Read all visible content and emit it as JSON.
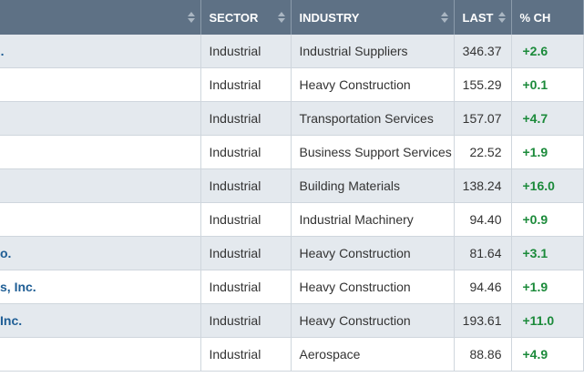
{
  "header": {
    "name": "",
    "sector": "SECTOR",
    "industry": "INDUSTRY",
    "last": "LAST",
    "pct_change": "% CH"
  },
  "colors": {
    "header_bg": "#5e7185",
    "alt_row_bg": "#e4e9ee",
    "name_link": "#1f5e95",
    "positive_change": "#1b8a3a"
  },
  "rows": [
    {
      "name": ".",
      "sector": "Industrial",
      "industry": "Industrial Suppliers",
      "last": "346.37",
      "pct": "+2.6"
    },
    {
      "name": "",
      "sector": "Industrial",
      "industry": "Heavy Construction",
      "last": "155.29",
      "pct": "+0.1"
    },
    {
      "name": "",
      "sector": "Industrial",
      "industry": "Transportation Services",
      "last": "157.07",
      "pct": "+4.7"
    },
    {
      "name": "",
      "sector": "Industrial",
      "industry": "Business Support Services",
      "last": "22.52",
      "pct": "+1.9"
    },
    {
      "name": "",
      "sector": "Industrial",
      "industry": "Building Materials",
      "last": "138.24",
      "pct": "+16.0"
    },
    {
      "name": "",
      "sector": "Industrial",
      "industry": "Industrial Machinery",
      "last": "94.40",
      "pct": "+0.9"
    },
    {
      "name": "o.",
      "sector": "Industrial",
      "industry": "Heavy Construction",
      "last": "81.64",
      "pct": "+3.1"
    },
    {
      "name": "s, Inc.",
      "sector": "Industrial",
      "industry": "Heavy Construction",
      "last": "94.46",
      "pct": "+1.9"
    },
    {
      "name": " Inc.",
      "sector": "Industrial",
      "industry": "Heavy Construction",
      "last": "193.61",
      "pct": "+11.0"
    },
    {
      "name": "",
      "sector": "Industrial",
      "industry": "Aerospace",
      "last": "88.86",
      "pct": "+4.9"
    }
  ]
}
